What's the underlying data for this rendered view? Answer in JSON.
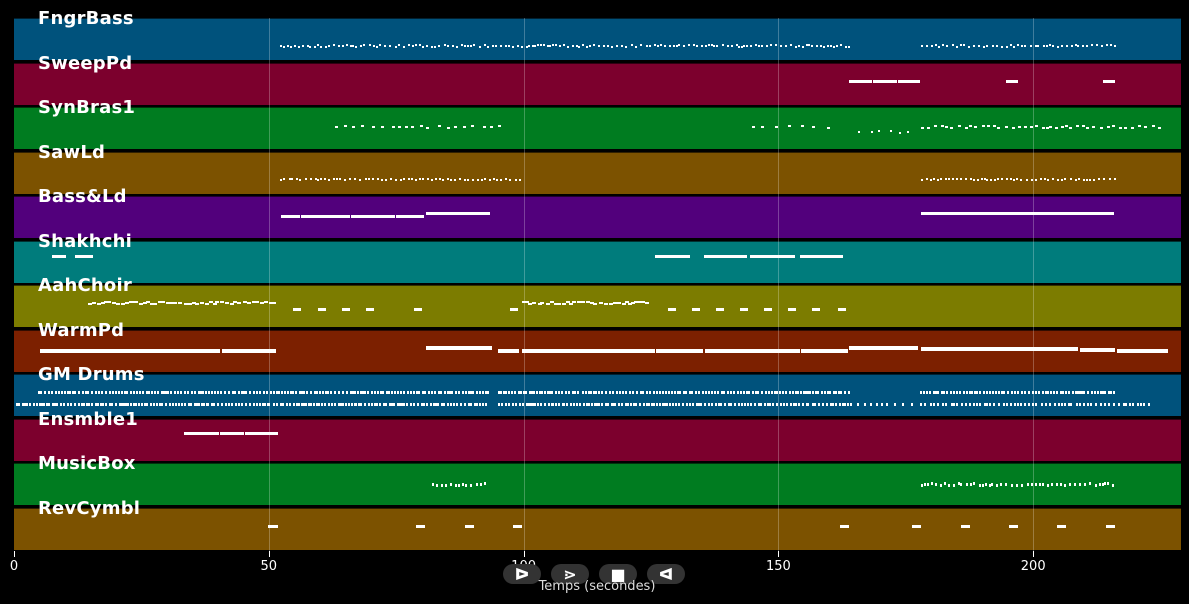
{
  "tracks": [
    {
      "label": "FngrBass",
      "color": "#00527c"
    },
    {
      "label": "SweepPd",
      "color": "#7c002d"
    },
    {
      "label": "SynBras1",
      "color": "#007c20"
    },
    {
      "label": "SawLd",
      "color": "#7c5200"
    },
    {
      "label": "Bass&Ld",
      "color": "#52007c"
    },
    {
      "label": "Shakhchi",
      "color": "#007c7c"
    },
    {
      "label": "AahChoir",
      "color": "#7c7c00"
    },
    {
      "label": "WarmPd",
      "color": "#7c2000"
    },
    {
      "label": "GM Drums",
      "color": "#00527c"
    },
    {
      "label": "Ensmble1",
      "color": "#7c002d"
    },
    {
      "label": "MusicBox",
      "color": "#007c20"
    },
    {
      "label": "RevCymbl",
      "color": "#7c5200"
    }
  ],
  "axis": {
    "title": "Temps (secondes)",
    "ticks": [
      "0",
      "50",
      "100",
      "150",
      "200"
    ],
    "tick_values": [
      0,
      50,
      100,
      150,
      200
    ],
    "range": [
      0,
      229
    ]
  },
  "controls": [
    {
      "name": "play-icon",
      "glyph": "ᐅ"
    },
    {
      "name": "forward-icon",
      "glyph": "⋗"
    },
    {
      "name": "stop-icon",
      "glyph": "■"
    },
    {
      "name": "rewind-icon",
      "glyph": "ᐊ"
    }
  ]
}
